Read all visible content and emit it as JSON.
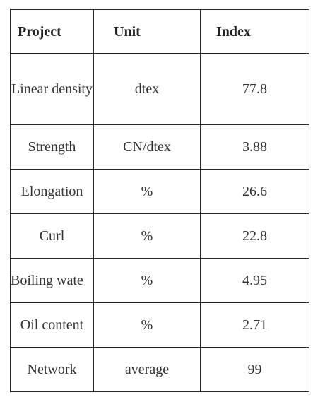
{
  "table": {
    "headers": {
      "project": "Project",
      "unit": "Unit",
      "index": "Index"
    },
    "rows": [
      {
        "project": "Linear density",
        "unit": "dtex",
        "index": "77.8"
      },
      {
        "project": "Strength",
        "unit": "CN/dtex",
        "index": "3.88"
      },
      {
        "project": "Elongation",
        "unit": "%",
        "index": "26.6"
      },
      {
        "project": "Curl",
        "unit": "%",
        "index": "22.8"
      },
      {
        "project": "Boiling wate",
        "unit": "%",
        "index": "4.95"
      },
      {
        "project": "Oil content",
        "unit": "%",
        "index": "2.71"
      },
      {
        "project": "Network",
        "unit": "average",
        "index": "99"
      }
    ]
  }
}
